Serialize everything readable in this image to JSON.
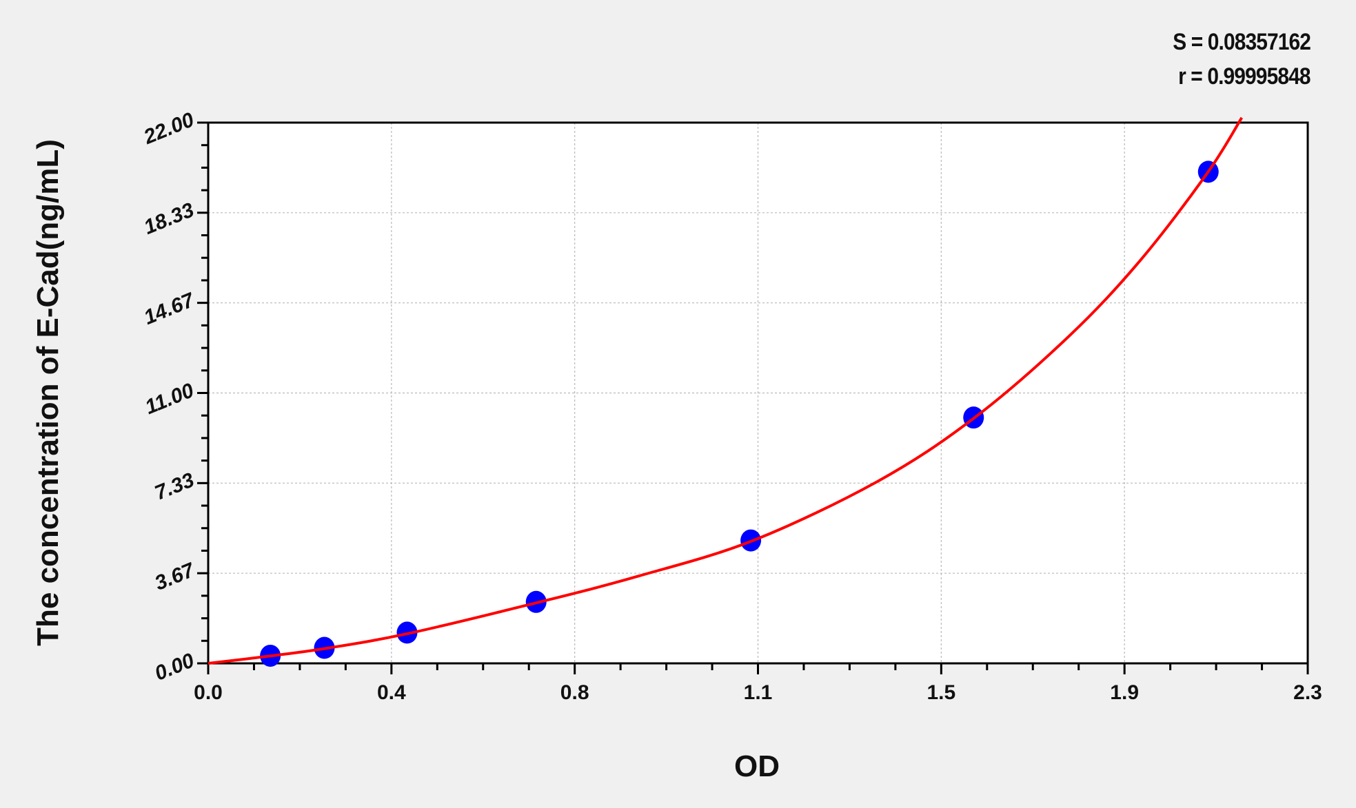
{
  "chart_data": {
    "type": "scatter",
    "xlabel": "OD",
    "ylabel": "The concentration of E-Cad(ng/mL)",
    "xlim": [
      0,
      2.3
    ],
    "ylim": [
      0,
      22
    ],
    "x_ticks": [
      "0.0",
      "0.4",
      "0.8",
      "1.1",
      "1.5",
      "1.9",
      "2.3"
    ],
    "y_ticks": [
      "0.00",
      "3.67",
      "7.33",
      "11.00",
      "14.67",
      "18.33",
      "22.00"
    ],
    "grid": true,
    "annotations": {
      "S": "S = 0.08357162",
      "r": "r = 0.99995848"
    },
    "points": [
      {
        "x": 0.13,
        "y": 0.31
      },
      {
        "x": 0.243,
        "y": 0.63
      },
      {
        "x": 0.416,
        "y": 1.25
      },
      {
        "x": 0.686,
        "y": 2.5
      },
      {
        "x": 1.135,
        "y": 5
      },
      {
        "x": 1.601,
        "y": 10
      },
      {
        "x": 2.092,
        "y": 20
      }
    ],
    "fit_curve": [
      [
        0,
        0
      ],
      [
        0.13,
        0.3
      ],
      [
        0.25,
        0.62
      ],
      [
        0.42,
        1.22
      ],
      [
        0.69,
        2.48
      ],
      [
        0.9,
        3.55
      ],
      [
        1.14,
        5.0
      ],
      [
        1.4,
        7.4
      ],
      [
        1.6,
        9.95
      ],
      [
        1.8,
        13.3
      ],
      [
        1.95,
        16.4
      ],
      [
        2.09,
        19.95
      ],
      [
        2.162,
        22.2
      ]
    ],
    "colors": {
      "points": "#0000ff",
      "curve": "#ff0000",
      "plot_bg": "#ffffff",
      "page_bg": "#f0f0f0",
      "grid": "#b8b8b8"
    }
  }
}
